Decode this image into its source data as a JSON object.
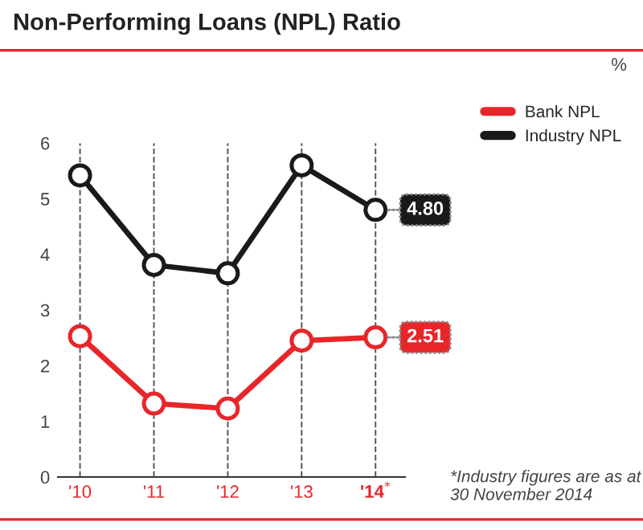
{
  "chart_data": {
    "type": "line",
    "title": "Non-Performing Loans (NPL) Ratio",
    "categories": [
      "'10",
      "'11",
      "'12",
      "'13",
      "'14$^{*}$"
    ],
    "series": [
      {
        "name": "Bank NPL",
        "color": "#e8262a",
        "values": [
          2.53,
          1.32,
          1.23,
          2.45,
          2.51
        ],
        "value_labels": [
          null,
          null,
          null,
          null,
          "2.51"
        ]
      },
      {
        "name": "Industry NPL",
        "color": "#1a1a1a",
        "values": [
          5.42,
          3.81,
          3.66,
          5.6,
          4.8
        ],
        "value_labels": [
          null,
          null,
          null,
          null,
          "4.80"
        ]
      }
    ],
    "ylim": [
      0,
      6
    ],
    "yticks": [
      0,
      1,
      2,
      3,
      4,
      5,
      6
    ],
    "grid": "x",
    "legend": "top right",
    "marker": "circle",
    "annotations": [
      "%",
      "*Industry figures are as at 30 November 2014"
    ]
  }
}
